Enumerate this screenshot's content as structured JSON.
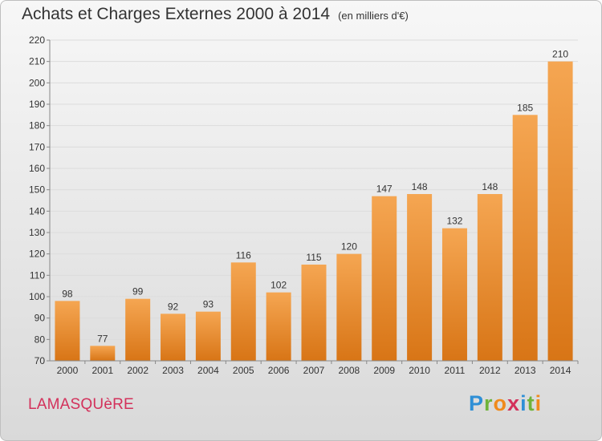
{
  "header": {
    "title": "Achats et Charges Externes 2000 à 2014",
    "subtitle": "(en milliers d'€)"
  },
  "footer": {
    "city": "LAMASQUèRE",
    "logo": {
      "letters": [
        "P",
        "r",
        "o",
        "x",
        "i",
        "t",
        "i"
      ],
      "colors": [
        "#2e8fd6",
        "#6fb33a",
        "#f08a1c",
        "#d3315b",
        "#2e8fd6",
        "#6fb33a",
        "#f08a1c"
      ]
    }
  },
  "colors": {
    "bar_light": "#f5a652",
    "bar_dark": "#d87516",
    "grid": "#dcdcdc",
    "axis": "#888888",
    "text": "#333333"
  },
  "chart_data": {
    "type": "bar",
    "categories": [
      "2000",
      "2001",
      "2002",
      "2003",
      "2004",
      "2005",
      "2006",
      "2007",
      "2008",
      "2009",
      "2010",
      "2011",
      "2012",
      "2013",
      "2014"
    ],
    "values": [
      98,
      77,
      99,
      92,
      93,
      116,
      102,
      115,
      120,
      147,
      148,
      132,
      148,
      185,
      210
    ],
    "ylim": [
      70,
      220
    ],
    "yticks": [
      70,
      80,
      90,
      100,
      110,
      120,
      130,
      140,
      150,
      160,
      170,
      180,
      190,
      200,
      210,
      220
    ],
    "grid": true,
    "data_labels": true
  }
}
